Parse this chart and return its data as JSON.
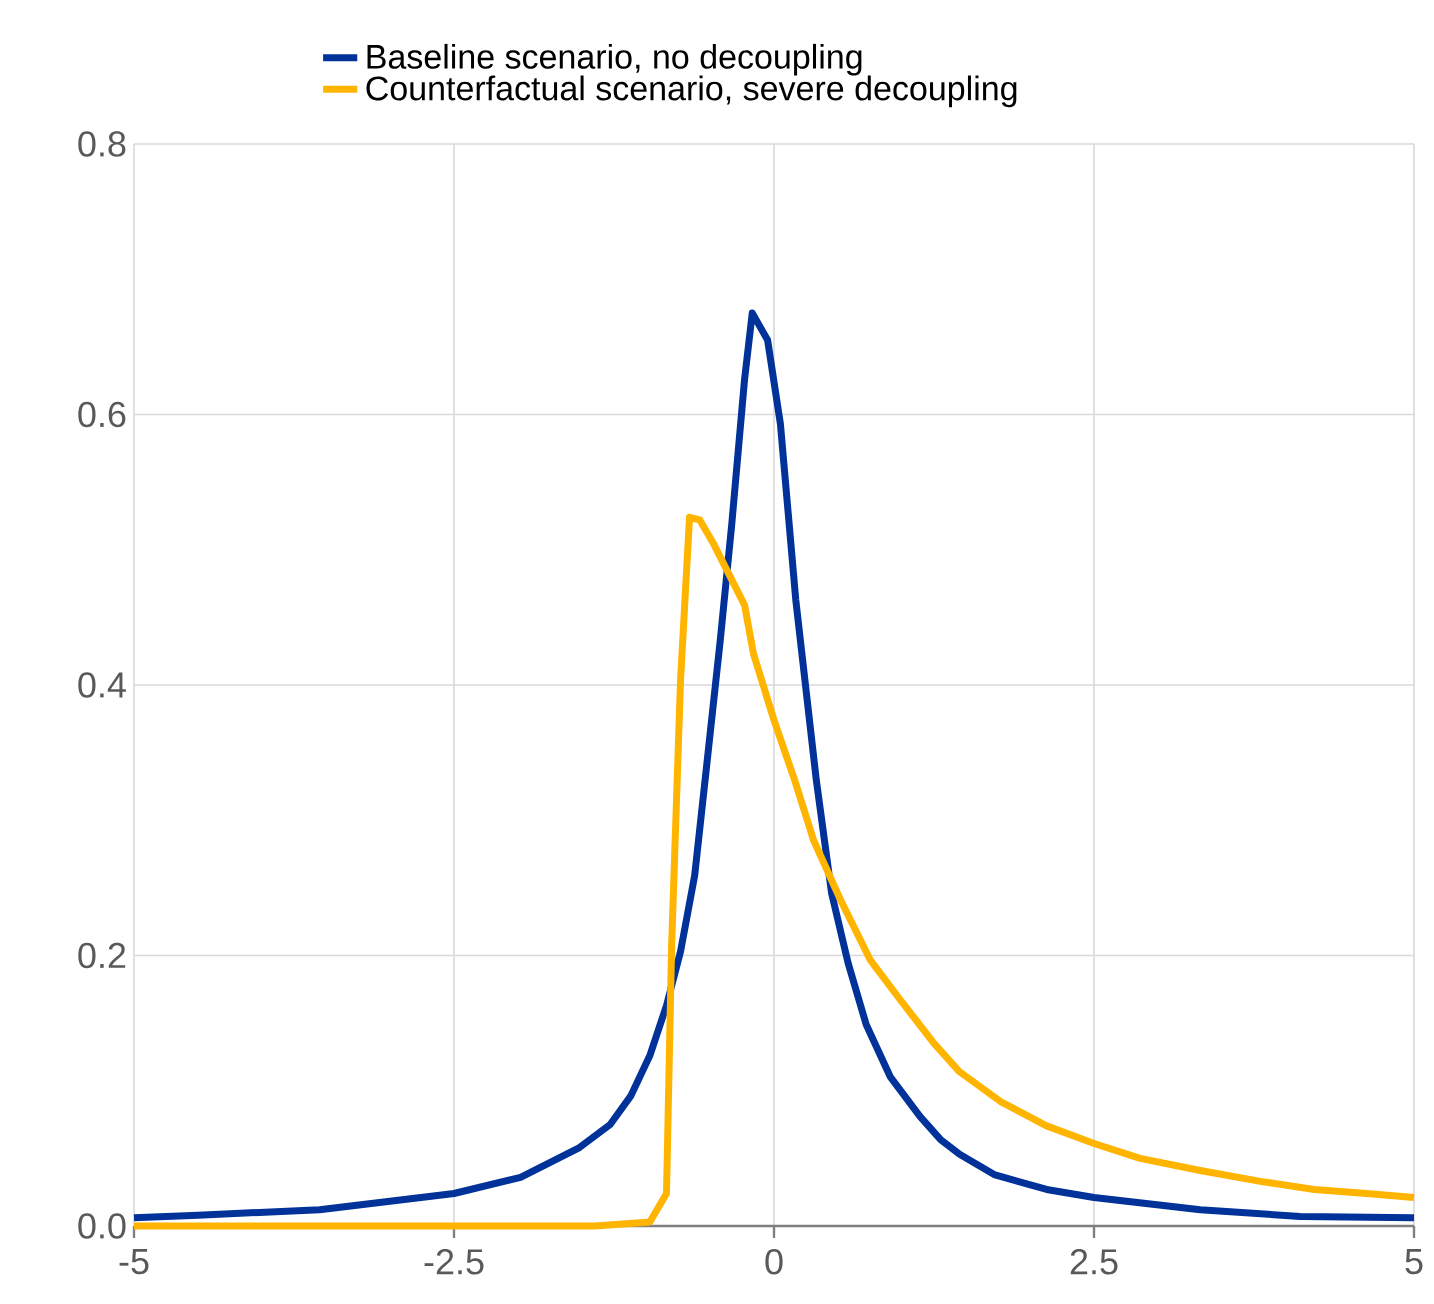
{
  "chart_data": {
    "type": "line",
    "xlim": [
      -5,
      5
    ],
    "ylim": [
      0,
      0.8
    ],
    "xticks": [
      -5,
      -2.5,
      0,
      2.5,
      5
    ],
    "yticks": [
      {
        "value": 0,
        "label": "0.0"
      },
      0.2,
      0.4,
      0.6,
      0.8
    ],
    "grid": true,
    "legend": "top left",
    "line_style": "solid",
    "marker": "none",
    "series": [
      {
        "name": "Baseline scenario, no decoupling",
        "color": "#003299",
        "x": [
          -5,
          -4.5,
          -3.55,
          -2.5,
          -1.98,
          -1.52,
          -1.28,
          -1.12,
          -0.97,
          -0.84,
          -0.73,
          -0.62,
          -0.53,
          -0.42,
          -0.33,
          -0.23,
          -0.17,
          -0.05,
          0.05,
          0.17,
          0.33,
          0.45,
          0.58,
          0.72,
          0.91,
          1.14,
          1.3,
          1.45,
          1.72,
          2.13,
          2.5,
          3.33,
          4.11,
          5
        ],
        "values": [
          0.006,
          0.008,
          0.012,
          0.024,
          0.036,
          0.058,
          0.075,
          0.096,
          0.126,
          0.163,
          0.203,
          0.259,
          0.337,
          0.433,
          0.519,
          0.626,
          0.675,
          0.655,
          0.593,
          0.463,
          0.33,
          0.246,
          0.194,
          0.149,
          0.11,
          0.081,
          0.064,
          0.053,
          0.038,
          0.027,
          0.021,
          0.012,
          0.007,
          0.006
        ]
      },
      {
        "name": "Counterfactual scenario, severe decoupling",
        "color": "#ffb400",
        "x": [
          -5,
          -1.4,
          -1.1,
          -0.97,
          -0.84,
          -0.8,
          -0.73,
          -0.66,
          -0.58,
          -0.47,
          -0.23,
          -0.16,
          0,
          0.16,
          0.31,
          0.52,
          0.75,
          0.98,
          1.25,
          1.45,
          1.77,
          2.13,
          2.5,
          2.86,
          3.33,
          3.8,
          4.22,
          4.63,
          5
        ],
        "values": [
          0,
          0,
          0.002,
          0.003,
          0.024,
          0.207,
          0.404,
          0.524,
          0.522,
          0.504,
          0.459,
          0.423,
          0.374,
          0.33,
          0.285,
          0.241,
          0.197,
          0.168,
          0.135,
          0.114,
          0.092,
          0.074,
          0.061,
          0.05,
          0.041,
          0.033,
          0.027,
          0.024,
          0.021
        ]
      }
    ]
  }
}
